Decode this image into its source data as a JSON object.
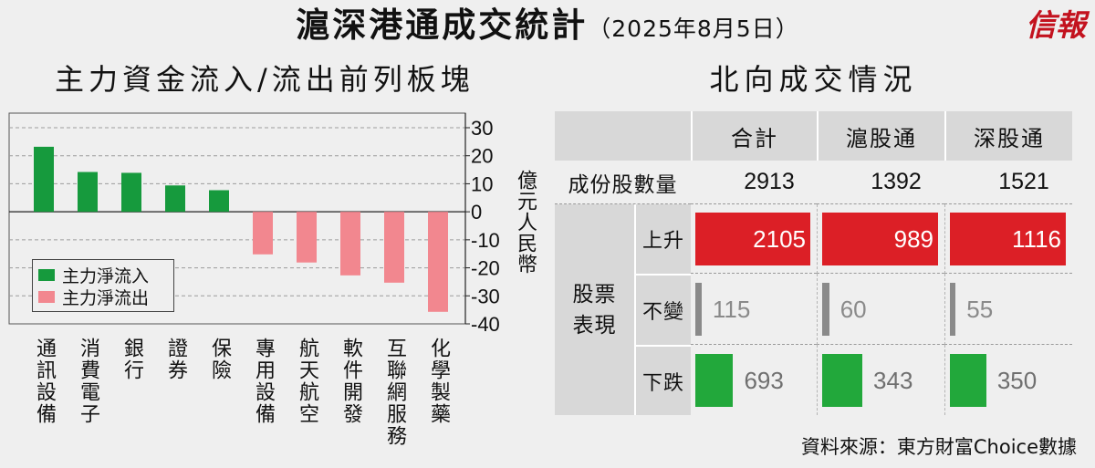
{
  "header": {
    "title": "滬深港通成交統計",
    "date": "（2025年8月5日）",
    "logo": "信報"
  },
  "chart_data": [
    {
      "type": "bar",
      "title": "主力資金流入/流出前列板塊",
      "categories": [
        "通訊設備",
        "消費電子",
        "銀行",
        "證券",
        "保險",
        "專用設備",
        "航天航空",
        "軟件開發",
        "互聯網服務",
        "化學製藥"
      ],
      "values": [
        23.2,
        14.2,
        13.9,
        9.4,
        7.7,
        -15.2,
        -18.1,
        -22.7,
        -25.3,
        -35.7
      ],
      "ylabel": "億元人民幣",
      "ylim": [
        -40,
        30
      ],
      "yticks": [
        30,
        20,
        10,
        0,
        -10,
        -20,
        -30,
        -40
      ],
      "grid": true,
      "legend_position": "bottom-left",
      "legend": [
        {
          "label": "主力淨流入",
          "color": "#169a3d"
        },
        {
          "label": "主力淨流出",
          "color": "#f2878f"
        }
      ]
    },
    {
      "type": "table",
      "title": "北向成交情況",
      "columns": [
        "合計",
        "滬股通",
        "深股通"
      ],
      "constituents": {
        "label": "成份股數量",
        "values": [
          2913,
          1392,
          1521
        ]
      },
      "performance": {
        "label": "股票表現",
        "rows": [
          {
            "label": "上升",
            "values": [
              2105,
              989,
              1116
            ],
            "bar_color": "#dc1f26",
            "text_color": "#ffffff"
          },
          {
            "label": "不變",
            "values": [
              115,
              60,
              55
            ],
            "bar_color": "#8a8a8a",
            "text_color": "#8a8a8a"
          },
          {
            "label": "下跌",
            "values": [
              693,
              343,
              350
            ],
            "bar_color": "#22a83b",
            "text_color": "#6f6f6f"
          }
        ]
      }
    }
  ],
  "source": "資料來源：東方財富Choice數據"
}
